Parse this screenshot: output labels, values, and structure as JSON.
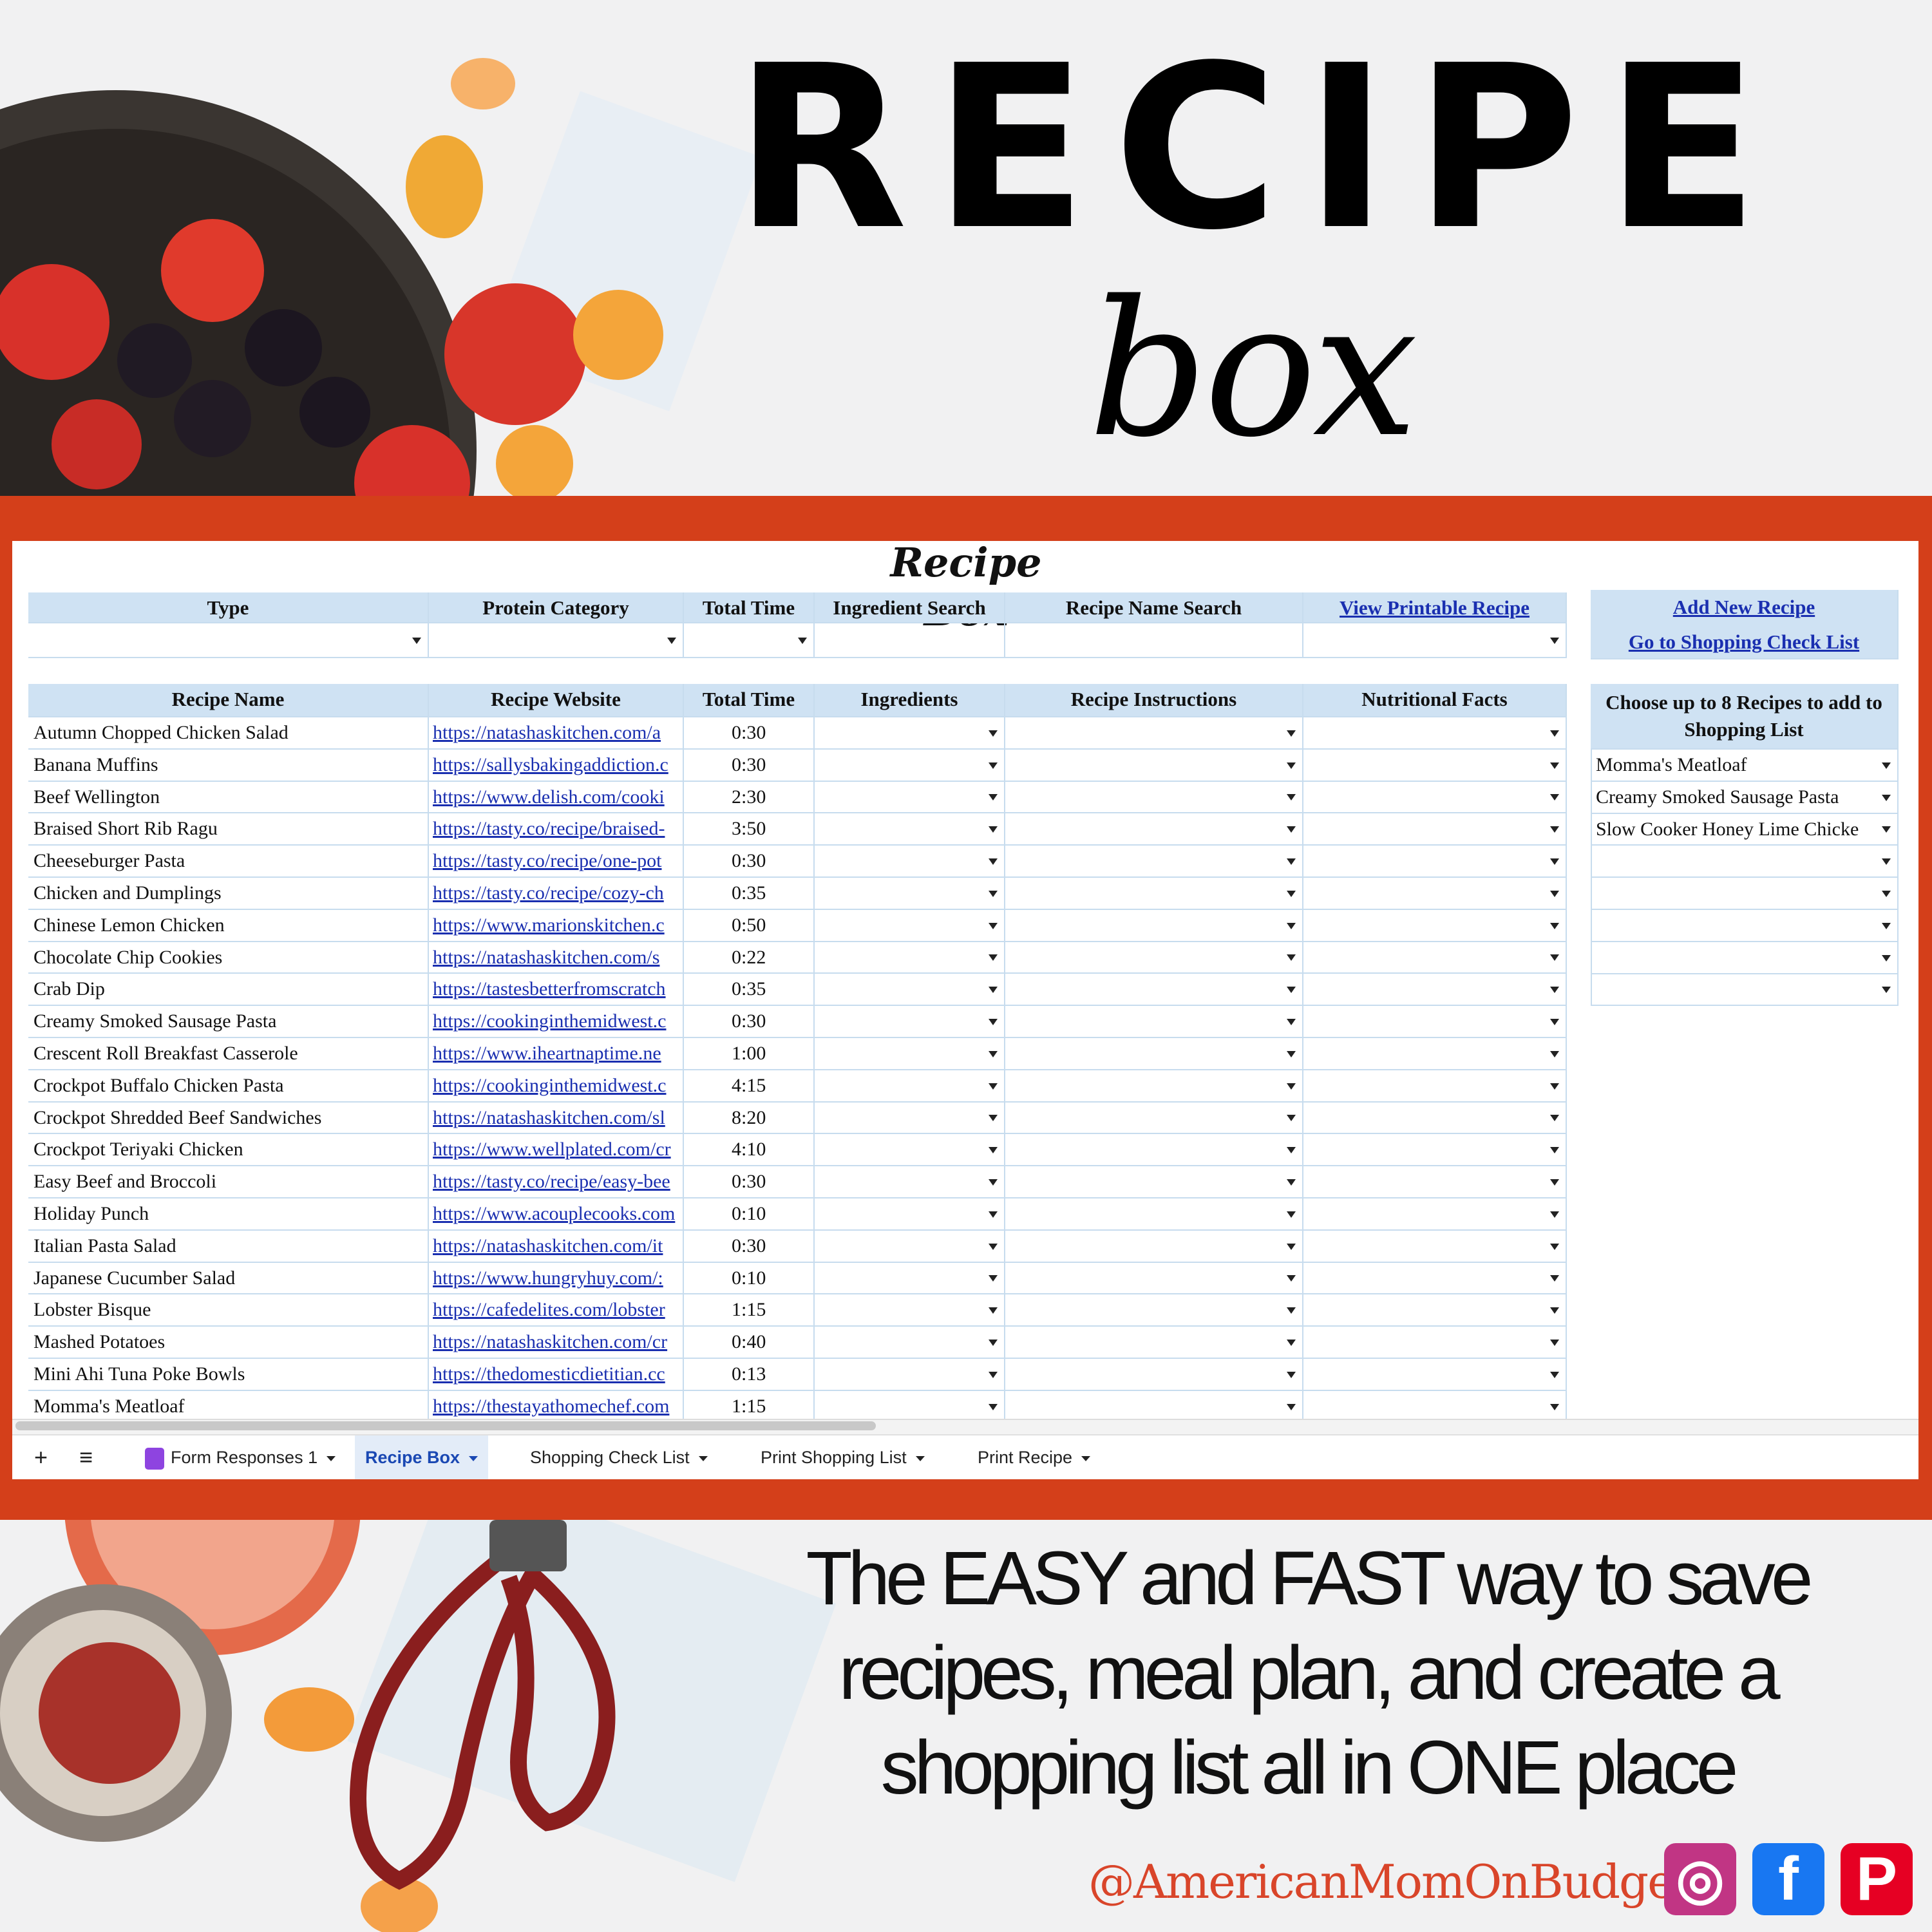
{
  "banner": {
    "title": "RECIPE",
    "subtitle": "box"
  },
  "sheet": {
    "title": "Recipe Box",
    "filters": {
      "headers": [
        "Type",
        "Protein Category",
        "Total Time",
        "Ingredient Search",
        "Recipe Name Search",
        "View Printable Recipe"
      ],
      "values": [
        "",
        "",
        "",
        "",
        "",
        ""
      ]
    },
    "links": {
      "add_new": "Add New Recipe",
      "shopping": "Go to Shopping Check List"
    },
    "table": {
      "headers": [
        "Recipe Name",
        "Recipe Website",
        "Total Time",
        "Ingredients",
        "Recipe Instructions",
        "Nutritional Facts"
      ],
      "rows": [
        [
          "Autumn Chopped Chicken Salad",
          "https://natashaskitchen.com/a",
          "0:30"
        ],
        [
          "Banana Muffins",
          "https://sallysbakingaddiction.c",
          "0:30"
        ],
        [
          "Beef Wellington",
          "https://www.delish.com/cooki",
          "2:30"
        ],
        [
          "Braised Short Rib Ragu",
          "https://tasty.co/recipe/braised-",
          "3:50"
        ],
        [
          "Cheeseburger Pasta",
          "https://tasty.co/recipe/one-pot",
          "0:30"
        ],
        [
          "Chicken and Dumplings",
          "https://tasty.co/recipe/cozy-ch",
          "0:35"
        ],
        [
          "Chinese Lemon Chicken",
          "https://www.marionskitchen.c",
          "0:50"
        ],
        [
          "Chocolate Chip Cookies",
          "https://natashaskitchen.com/s",
          "0:22"
        ],
        [
          "Crab Dip",
          "https://tastesbetterfromscratch",
          "0:35"
        ],
        [
          "Creamy Smoked Sausage Pasta",
          "https://cookinginthemidwest.c",
          "0:30"
        ],
        [
          "Crescent Roll Breakfast Casserole",
          "https://www.iheartnaptime.ne",
          "1:00"
        ],
        [
          "Crockpot Buffalo Chicken Pasta",
          "https://cookinginthemidwest.c",
          "4:15"
        ],
        [
          "Crockpot Shredded Beef Sandwiches",
          "https://natashaskitchen.com/sl",
          "8:20"
        ],
        [
          "Crockpot Teriyaki Chicken",
          "https://www.wellplated.com/cr",
          "4:10"
        ],
        [
          "Easy Beef and Broccoli",
          "https://tasty.co/recipe/easy-bee",
          "0:30"
        ],
        [
          "Holiday Punch",
          "https://www.acouplecooks.com",
          "0:10"
        ],
        [
          "Italian Pasta Salad",
          "https://natashaskitchen.com/it",
          "0:30"
        ],
        [
          "Japanese Cucumber Salad",
          "https://www.hungryhuy.com/:",
          "0:10"
        ],
        [
          "Lobster Bisque",
          "https://cafedelites.com/lobster",
          "1:15"
        ],
        [
          "Mashed Potatoes",
          "https://natashaskitchen.com/cr",
          "0:40"
        ],
        [
          "Mini Ahi Tuna Poke Bowls",
          "https://thedomesticdietitian.cc",
          "0:13"
        ],
        [
          "Momma's Meatloaf",
          "https://thestayathomechef.com",
          "1:15"
        ]
      ]
    },
    "shopping": {
      "header": "Choose up to 8 Recipes to add to Shopping List",
      "selections": [
        "Momma's Meatloaf",
        "Creamy Smoked Sausage Pasta",
        "Slow Cooker Honey Lime Chicke",
        "",
        "",
        "",
        "",
        ""
      ]
    },
    "tabs": [
      {
        "label": "Form Responses 1",
        "active": false,
        "icon": "form-icon"
      },
      {
        "label": "Recipe Box",
        "active": true
      },
      {
        "label": "Shopping Check List",
        "active": false
      },
      {
        "label": "Print Shopping List",
        "active": false
      },
      {
        "label": "Print Recipe",
        "active": false
      }
    ],
    "add_sheet": "+",
    "all_sheets": "≡"
  },
  "tagline": [
    "The EASY and FAST way to save",
    "recipes, meal plan, and create a",
    "shopping list all in ONE place"
  ],
  "handle": "@AmericanMomOnBudget",
  "social": [
    {
      "name": "instagram-icon",
      "glyph": "◎",
      "color": "#c13584"
    },
    {
      "name": "facebook-icon",
      "glyph": "f",
      "color": "#1877f2"
    },
    {
      "name": "pinterest-icon",
      "glyph": "P",
      "color": "#e60023"
    }
  ],
  "colors": {
    "band": "#d43f1a",
    "header": "#cfe2f3",
    "link": "#1a2fb0",
    "handle": "#d9452a"
  }
}
